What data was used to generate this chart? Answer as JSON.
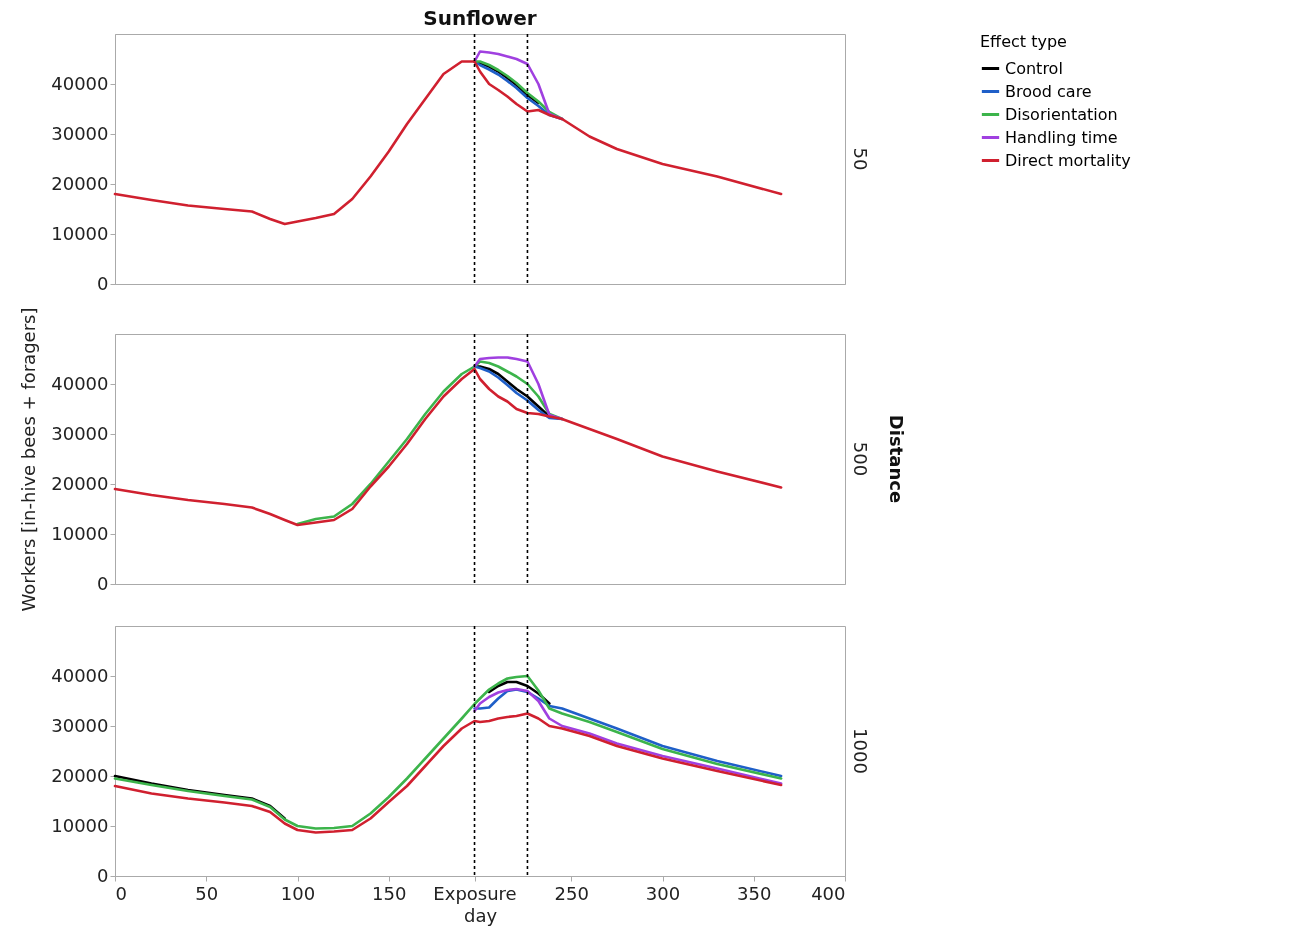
{
  "chart_data": [
    {
      "type": "line",
      "title": "Sunflower",
      "y2label": "50",
      "legend": "top right",
      "legend_title": "Effect type",
      "grid": false,
      "tick_labels": "y",
      "line_style": "solid",
      "x": [
        0,
        20,
        40,
        60,
        75,
        85,
        93,
        100,
        110,
        120,
        130,
        140,
        150,
        160,
        170,
        180,
        190,
        197,
        200,
        205,
        210,
        215,
        220,
        226,
        232,
        238,
        245,
        260,
        275,
        300,
        330,
        365
      ],
      "xlim": [
        0,
        400
      ],
      "ylim": [
        0,
        50000
      ],
      "yticks": [
        0,
        10000,
        20000,
        30000,
        40000
      ],
      "ref_lines": [
        {
          "axis": "x",
          "value": 197,
          "line_style": "dotted",
          "color": "#000000"
        },
        {
          "axis": "x",
          "value": 226,
          "line_style": "dotted",
          "color": "#000000"
        }
      ],
      "series": [
        {
          "name": "Control",
          "color": "#000000",
          "values": [
            null,
            null,
            null,
            null,
            null,
            null,
            null,
            null,
            null,
            null,
            null,
            null,
            null,
            null,
            null,
            null,
            null,
            44500,
            44200,
            43500,
            42500,
            41200,
            39800,
            37800,
            36200,
            null,
            null,
            null,
            null,
            null,
            null,
            null
          ]
        },
        {
          "name": "Brood care",
          "color": "#1f5fc8",
          "values": [
            null,
            null,
            null,
            null,
            null,
            null,
            null,
            null,
            null,
            null,
            null,
            null,
            null,
            null,
            null,
            null,
            null,
            44500,
            43800,
            42900,
            41900,
            40600,
            39200,
            37200,
            35600,
            33800,
            33000,
            null,
            null,
            null,
            null,
            null
          ]
        },
        {
          "name": "Disorientation",
          "color": "#3cb44b",
          "values": [
            null,
            null,
            null,
            null,
            null,
            null,
            null,
            null,
            null,
            null,
            null,
            null,
            null,
            null,
            null,
            null,
            null,
            44500,
            44500,
            43800,
            42800,
            41600,
            40200,
            38200,
            36500,
            34400,
            33000,
            null,
            null,
            null,
            null,
            null
          ]
        },
        {
          "name": "Handling time",
          "color": "#a040e0",
          "values": [
            null,
            null,
            null,
            null,
            null,
            null,
            null,
            null,
            null,
            null,
            null,
            null,
            null,
            null,
            null,
            null,
            null,
            44500,
            46500,
            46300,
            46000,
            45500,
            45000,
            44000,
            40000,
            34000,
            33000,
            null,
            null,
            null,
            null,
            null
          ]
        },
        {
          "name": "Direct mortality",
          "color": "#d0202f",
          "values": [
            18000,
            16800,
            15700,
            15000,
            14500,
            13000,
            12000,
            12500,
            13200,
            14000,
            17000,
            21500,
            26500,
            32000,
            37000,
            42000,
            44500,
            44500,
            42500,
            40000,
            38800,
            37500,
            36000,
            34500,
            34800,
            33800,
            33000,
            29500,
            27000,
            24000,
            21500,
            18000
          ]
        }
      ]
    },
    {
      "type": "line",
      "y2label": "500",
      "ylabel": "Workers [in-hive bees + foragers]",
      "annotations": [
        "Distance"
      ],
      "grid": false,
      "tick_labels": "y",
      "line_style": "solid",
      "x": [
        0,
        20,
        40,
        60,
        75,
        85,
        93,
        100,
        110,
        120,
        130,
        140,
        150,
        160,
        170,
        180,
        190,
        197,
        200,
        205,
        210,
        215,
        220,
        226,
        232,
        238,
        245,
        260,
        275,
        300,
        330,
        365
      ],
      "xlim": [
        0,
        400
      ],
      "ylim": [
        0,
        50000
      ],
      "yticks": [
        0,
        10000,
        20000,
        30000,
        40000
      ],
      "ref_lines": [
        {
          "axis": "x",
          "value": 197,
          "line_style": "dotted",
          "color": "#000000"
        },
        {
          "axis": "x",
          "value": 226,
          "line_style": "dotted",
          "color": "#000000"
        }
      ],
      "series": [
        {
          "name": "Control",
          "color": "#000000",
          "values": [
            null,
            null,
            null,
            null,
            null,
            null,
            null,
            null,
            null,
            null,
            null,
            null,
            null,
            null,
            null,
            null,
            null,
            43500,
            43500,
            43000,
            42000,
            40500,
            39000,
            37500,
            35500,
            33500,
            null,
            null,
            null,
            null,
            null,
            null
          ]
        },
        {
          "name": "Brood care",
          "color": "#1f5fc8",
          "values": [
            null,
            null,
            null,
            null,
            null,
            null,
            null,
            null,
            null,
            null,
            null,
            null,
            null,
            null,
            null,
            null,
            null,
            43500,
            43200,
            42500,
            41300,
            39800,
            38200,
            36700,
            34800,
            33200,
            33000,
            null,
            null,
            null,
            null,
            null
          ]
        },
        {
          "name": "Disorientation",
          "color": "#3cb44b",
          "values": [
            null,
            null,
            null,
            null,
            null,
            null,
            null,
            12000,
            13000,
            13500,
            16000,
            20000,
            24500,
            29000,
            34000,
            38500,
            42000,
            43500,
            44500,
            44200,
            43500,
            42500,
            41500,
            40000,
            37500,
            34000,
            33000,
            null,
            null,
            null,
            null,
            null
          ]
        },
        {
          "name": "Handling time",
          "color": "#a040e0",
          "values": [
            null,
            null,
            null,
            null,
            null,
            null,
            null,
            null,
            null,
            null,
            null,
            null,
            null,
            null,
            null,
            null,
            null,
            43500,
            45000,
            45200,
            45300,
            45300,
            45000,
            44500,
            40000,
            33800,
            33000,
            null,
            null,
            null,
            null,
            null
          ]
        },
        {
          "name": "Direct mortality",
          "color": "#d0202f",
          "values": [
            19000,
            17800,
            16800,
            16000,
            15300,
            14000,
            12800,
            11800,
            12300,
            12800,
            15000,
            19500,
            23500,
            28000,
            33000,
            37500,
            41000,
            43000,
            41000,
            39000,
            37500,
            36500,
            35000,
            34200,
            34000,
            33500,
            33000,
            31000,
            29000,
            25500,
            22500,
            19300
          ]
        }
      ]
    },
    {
      "type": "line",
      "y2label": "1000",
      "xlabel": "day",
      "grid": false,
      "line_style": "solid",
      "x": [
        0,
        20,
        40,
        60,
        75,
        85,
        93,
        100,
        110,
        120,
        130,
        140,
        150,
        160,
        170,
        180,
        190,
        197,
        200,
        205,
        210,
        215,
        220,
        226,
        232,
        238,
        245,
        260,
        275,
        300,
        330,
        365
      ],
      "xlim": [
        0,
        400
      ],
      "xticks": [
        0,
        50,
        100,
        150,
        {
          "value": 197,
          "label": "Exposure"
        },
        250,
        300,
        350,
        400
      ],
      "ylim": [
        0,
        50000
      ],
      "yticks": [
        0,
        10000,
        20000,
        30000,
        40000
      ],
      "ref_lines": [
        {
          "axis": "x",
          "value": 197,
          "line_style": "dotted",
          "color": "#000000"
        },
        {
          "axis": "x",
          "value": 226,
          "line_style": "dotted",
          "color": "#000000"
        }
      ],
      "series": [
        {
          "name": "Control",
          "color": "#000000",
          "values": [
            20000,
            18500,
            17200,
            16200,
            15500,
            14000,
            11500,
            null,
            null,
            null,
            null,
            null,
            null,
            null,
            null,
            null,
            null,
            null,
            null,
            36800,
            38000,
            38800,
            38800,
            38000,
            36500,
            34500,
            null,
            null,
            null,
            null,
            null,
            null
          ]
        },
        {
          "name": "Brood care",
          "color": "#1f5fc8",
          "values": [
            null,
            null,
            null,
            null,
            null,
            null,
            null,
            null,
            null,
            null,
            null,
            null,
            null,
            null,
            null,
            null,
            null,
            33500,
            33500,
            33700,
            35500,
            37000,
            37300,
            36800,
            35500,
            34000,
            33500,
            31500,
            29500,
            26000,
            23000,
            20000
          ]
        },
        {
          "name": "Disorientation",
          "color": "#3cb44b",
          "values": [
            19500,
            18200,
            17000,
            16000,
            15300,
            13800,
            11300,
            10000,
            9500,
            9600,
            10000,
            12500,
            15800,
            19500,
            23500,
            27500,
            31500,
            34400,
            35500,
            37300,
            38500,
            39500,
            39800,
            40000,
            37100,
            33500,
            32500,
            30800,
            28800,
            25400,
            22400,
            19500
          ]
        },
        {
          "name": "Handling time",
          "color": "#a040e0",
          "values": [
            null,
            null,
            null,
            null,
            null,
            null,
            null,
            null,
            null,
            null,
            null,
            null,
            null,
            null,
            null,
            null,
            null,
            33000,
            34500,
            35800,
            36700,
            37200,
            37400,
            37000,
            35000,
            31500,
            30000,
            28500,
            26500,
            24000,
            21500,
            18500
          ]
        },
        {
          "name": "Direct mortality",
          "color": "#d0202f",
          "values": [
            18000,
            16500,
            15500,
            14700,
            14000,
            12800,
            10500,
            9200,
            8700,
            8900,
            9200,
            11500,
            14800,
            18000,
            22000,
            26000,
            29500,
            31000,
            30800,
            31000,
            31500,
            31800,
            32000,
            32500,
            31500,
            30000,
            29500,
            28000,
            26000,
            23500,
            21000,
            18200
          ]
        }
      ]
    }
  ]
}
